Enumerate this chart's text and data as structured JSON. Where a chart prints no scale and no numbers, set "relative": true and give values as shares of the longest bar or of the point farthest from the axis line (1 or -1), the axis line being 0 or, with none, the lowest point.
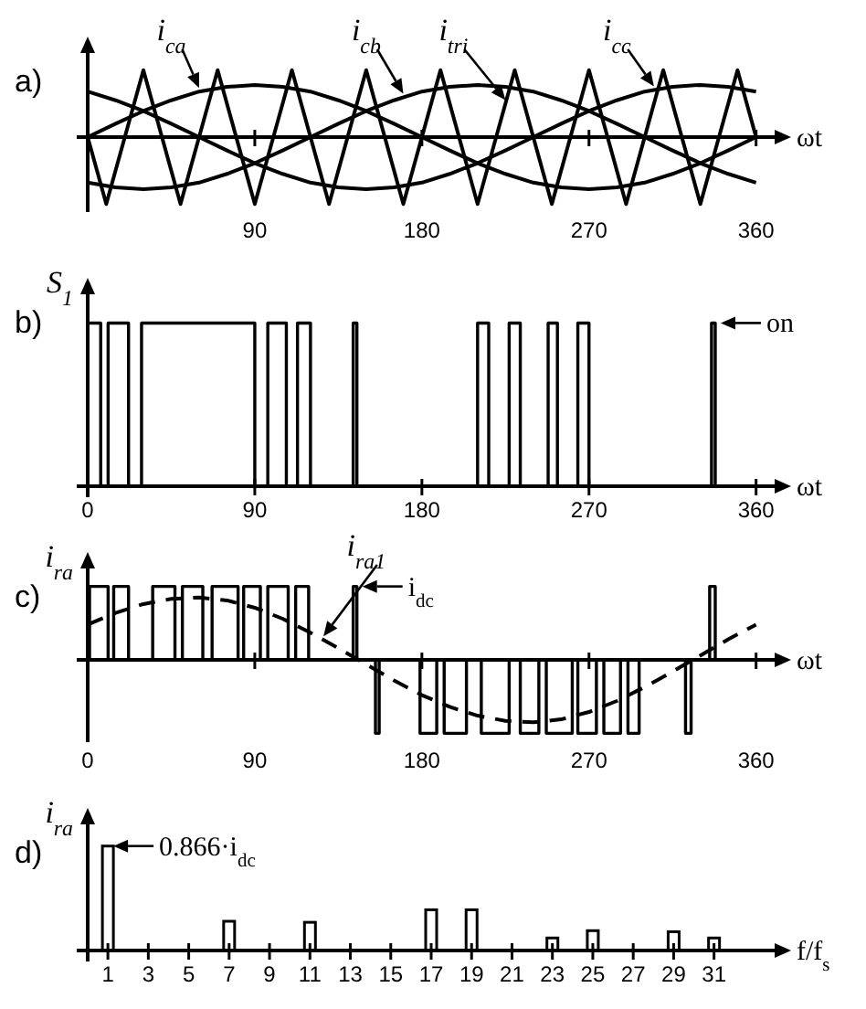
{
  "chart_data": [
    {
      "type": "line",
      "title": "a)",
      "xlabel": "ωt",
      "relative": true,
      "xlim": [
        0,
        370
      ],
      "xticks": [
        90,
        180,
        270,
        360
      ],
      "x": [
        0,
        15,
        30,
        45,
        60,
        75,
        90,
        105,
        120,
        135,
        150,
        165,
        180,
        195,
        210,
        225,
        240,
        255,
        270,
        285,
        300,
        315,
        330,
        345,
        360
      ],
      "series": [
        {
          "name": "i$_{ca}$",
          "color": "#000000",
          "values": [
            0,
            0.2,
            0.39,
            0.55,
            0.68,
            0.75,
            0.78,
            0.75,
            0.68,
            0.55,
            0.39,
            0.2,
            0,
            -0.2,
            -0.39,
            -0.55,
            -0.68,
            -0.75,
            -0.78,
            -0.75,
            -0.68,
            -0.55,
            -0.39,
            -0.2,
            0
          ]
        },
        {
          "name": "i$_{cb}$",
          "color": "#000000",
          "values": [
            -0.68,
            -0.75,
            -0.78,
            -0.75,
            -0.68,
            -0.55,
            -0.39,
            -0.2,
            0,
            0.2,
            0.39,
            0.55,
            0.68,
            0.75,
            0.78,
            0.75,
            0.68,
            0.55,
            0.39,
            0.2,
            0,
            -0.2,
            -0.39,
            -0.55,
            -0.68
          ]
        },
        {
          "name": "i$_{cc}$",
          "color": "#000000",
          "values": [
            0.68,
            0.55,
            0.39,
            0.2,
            0,
            -0.2,
            -0.39,
            -0.55,
            -0.68,
            -0.75,
            -0.78,
            -0.75,
            -0.68,
            -0.55,
            -0.39,
            -0.2,
            0,
            0.2,
            0.39,
            0.55,
            0.68,
            0.75,
            0.78,
            0.75,
            0.68
          ]
        },
        {
          "name": "i$_{tri}$",
          "color": "#000000",
          "x": [
            0,
            10,
            30,
            50,
            70,
            90,
            110,
            130,
            150,
            170,
            190,
            210,
            230,
            250,
            270,
            290,
            310,
            330,
            350,
            360
          ],
          "values": [
            0,
            -1,
            1,
            -1,
            1,
            -1,
            1,
            -1,
            1,
            -1,
            1,
            -1,
            1,
            -1,
            1,
            -1,
            1,
            -1,
            1,
            0
          ]
        }
      ]
    },
    {
      "type": "step",
      "title": "b)",
      "xlabel": "ωt",
      "ylabel": "S$_{1}$",
      "relative": true,
      "xlim": [
        0,
        370
      ],
      "xticks": [
        0,
        90,
        180,
        270,
        360
      ],
      "x": [
        0,
        7,
        11,
        22,
        29,
        90,
        97,
        107,
        113,
        120,
        143,
        145,
        210,
        216,
        227,
        233,
        248,
        253,
        264,
        270,
        336,
        338,
        360
      ],
      "values": [
        1,
        0,
        1,
        0,
        1,
        0,
        1,
        0,
        1,
        0,
        1,
        0,
        1,
        0,
        1,
        0,
        1,
        0,
        1,
        0,
        1,
        0,
        0
      ],
      "color": "#000000",
      "annotations": [
        {
          "text": "on",
          "x": 338,
          "y": 1
        }
      ]
    },
    {
      "type": "step",
      "title": "c)",
      "xlabel": "ωt",
      "ylabel": "i$_{ra}$",
      "relative": true,
      "xlim": [
        0,
        370
      ],
      "xticks": [
        0,
        90,
        180,
        270,
        360
      ],
      "series": [
        {
          "color": "#000000",
          "x": [
            0,
            1,
            11,
            14,
            22,
            35,
            47,
            51,
            62,
            67,
            81,
            84,
            93,
            97,
            108,
            112,
            119,
            143,
            145,
            155,
            157,
            179,
            188,
            192,
            204,
            212,
            227,
            233,
            243,
            247,
            261,
            264,
            274,
            278,
            287,
            291,
            297,
            322,
            325,
            335,
            338,
            360
          ],
          "values": [
            0,
            1,
            0,
            1,
            0,
            1,
            0,
            1,
            0,
            1,
            0,
            1,
            0,
            1,
            0,
            1,
            0,
            1,
            0,
            -1,
            0,
            -1,
            0,
            -1,
            0,
            -1,
            0,
            -1,
            0,
            -1,
            0,
            -1,
            0,
            -1,
            0,
            -1,
            0,
            -1,
            0,
            1,
            0,
            0
          ]
        },
        {
          "name": "i$_{ra1}$",
          "type": "line",
          "line_style": "dashed",
          "color": "#000000",
          "x": [
            0,
            15,
            30,
            45,
            60,
            75,
            90,
            105,
            120,
            135,
            150,
            165,
            180,
            195,
            210,
            225,
            240,
            255,
            270,
            285,
            300,
            315,
            330,
            345,
            360
          ],
          "values": [
            0.48,
            0.64,
            0.76,
            0.83,
            0.85,
            0.81,
            0.71,
            0.56,
            0.37,
            0.16,
            -0.06,
            -0.28,
            -0.48,
            -0.64,
            -0.76,
            -0.83,
            -0.85,
            -0.81,
            -0.71,
            -0.56,
            -0.37,
            -0.16,
            0.06,
            0.28,
            0.48
          ]
        }
      ],
      "annotations": [
        {
          "text": "i$_{dc}$",
          "x": 145,
          "y": 1
        }
      ]
    },
    {
      "type": "bar",
      "title": "d)",
      "xlabel": "f/f$_{s}$",
      "ylabel": "i$_{ra}$",
      "relative": true,
      "xlim": [
        0,
        34
      ],
      "xticks": [
        1,
        3,
        5,
        7,
        9,
        11,
        13,
        15,
        17,
        19,
        21,
        23,
        25,
        27,
        29,
        31
      ],
      "x": [
        1,
        7,
        11,
        17,
        19,
        23,
        25,
        29,
        31
      ],
      "values": [
        1,
        0.28,
        0.27,
        0.39,
        0.39,
        0.12,
        0.19,
        0.18,
        0.12
      ],
      "color": "#000000",
      "annotations": [
        {
          "text": "0.866·i$_{dc}$",
          "x": 1,
          "y": 1
        }
      ]
    }
  ]
}
